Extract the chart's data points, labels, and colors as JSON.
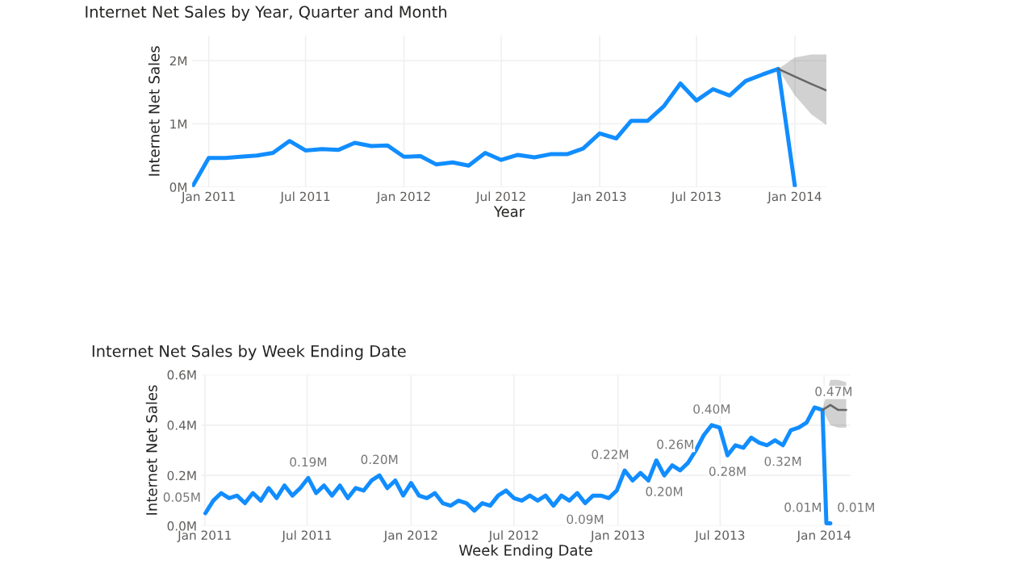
{
  "chart_data": [
    {
      "type": "line",
      "title": "Internet Net Sales by Year, Quarter and Month",
      "xlabel": "Year",
      "ylabel": "Internet Net Sales",
      "xlim": [
        "2010-12",
        "2014-03"
      ],
      "ylim": [
        0,
        2.4
      ],
      "xticks": [
        {
          "value": "2011-01",
          "label": "Jan 2011"
        },
        {
          "value": "2011-07",
          "label": "Jul 2011"
        },
        {
          "value": "2012-01",
          "label": "Jan 2012"
        },
        {
          "value": "2012-07",
          "label": "Jul 2012"
        },
        {
          "value": "2013-01",
          "label": "Jan 2013"
        },
        {
          "value": "2013-07",
          "label": "Jul 2013"
        },
        {
          "value": "2014-01",
          "label": "Jan 2014"
        }
      ],
      "yticks": [
        {
          "value": 0,
          "label": "0M"
        },
        {
          "value": 1,
          "label": "1M"
        },
        {
          "value": 2,
          "label": "2M"
        }
      ],
      "grid": true,
      "legend": false,
      "series": [
        {
          "color": "#118dff",
          "x": [
            "2010-12",
            "2011-01",
            "2011-02",
            "2011-03",
            "2011-04",
            "2011-05",
            "2011-06",
            "2011-07",
            "2011-08",
            "2011-09",
            "2011-10",
            "2011-11",
            "2011-12",
            "2012-01",
            "2012-02",
            "2012-03",
            "2012-04",
            "2012-05",
            "2012-06",
            "2012-07",
            "2012-08",
            "2012-09",
            "2012-10",
            "2012-11",
            "2012-12",
            "2013-01",
            "2013-02",
            "2013-03",
            "2013-04",
            "2013-05",
            "2013-06",
            "2013-07",
            "2013-08",
            "2013-09",
            "2013-10",
            "2013-11",
            "2013-12",
            "2014-01"
          ],
          "values": [
            0,
            0.46,
            0.46,
            0.48,
            0.5,
            0.54,
            0.73,
            0.58,
            0.6,
            0.59,
            0.7,
            0.65,
            0.66,
            0.48,
            0.49,
            0.36,
            0.39,
            0.34,
            0.54,
            0.43,
            0.51,
            0.47,
            0.52,
            0.52,
            0.61,
            0.85,
            0.77,
            1.05,
            1.05,
            1.28,
            1.64,
            1.37,
            1.55,
            1.45,
            1.68,
            1.78,
            1.87,
            0.02
          ]
        },
        {
          "color": "#666666",
          "x": [
            "2013-12",
            "2014-01",
            "2014-02",
            "2014-03"
          ],
          "values": [
            1.87,
            1.75,
            1.63,
            1.53
          ],
          "lower": [
            1.87,
            1.45,
            1.15,
            0.98
          ],
          "upper": [
            1.87,
            2.05,
            2.1,
            2.1
          ]
        }
      ]
    },
    {
      "type": "line",
      "title": "Internet Net Sales by Week Ending Date",
      "xlabel": "Week Ending Date",
      "ylabel": "Internet Net Sales",
      "xlim": [
        "2010-12-26",
        "2014-02-16"
      ],
      "ylim": [
        0,
        0.6
      ],
      "xticks": [
        {
          "value": "2011-01-01",
          "label": "Jan 2011"
        },
        {
          "value": "2011-07-01",
          "label": "Jul 2011"
        },
        {
          "value": "2012-01-01",
          "label": "Jan 2012"
        },
        {
          "value": "2012-07-01",
          "label": "Jul 2012"
        },
        {
          "value": "2013-01-01",
          "label": "Jan 2013"
        },
        {
          "value": "2013-07-01",
          "label": "Jul 2013"
        },
        {
          "value": "2014-01-01",
          "label": "Jan 2014"
        }
      ],
      "yticks": [
        {
          "value": 0,
          "label": "0.0M"
        },
        {
          "value": 0.2,
          "label": "0.2M"
        },
        {
          "value": 0.4,
          "label": "0.4M"
        },
        {
          "value": 0.6,
          "label": "0.6M"
        }
      ],
      "grid": true,
      "legend": false,
      "series": [
        {
          "color": "#118dff",
          "x": [
            "2011-01-02",
            "2011-01-16",
            "2011-01-30",
            "2011-02-13",
            "2011-02-27",
            "2011-03-13",
            "2011-03-27",
            "2011-04-10",
            "2011-04-24",
            "2011-05-08",
            "2011-05-22",
            "2011-06-05",
            "2011-06-19",
            "2011-07-03",
            "2011-07-17",
            "2011-07-31",
            "2011-08-14",
            "2011-08-28",
            "2011-09-11",
            "2011-09-25",
            "2011-10-09",
            "2011-10-23",
            "2011-11-06",
            "2011-11-20",
            "2011-12-04",
            "2011-12-18",
            "2012-01-01",
            "2012-01-15",
            "2012-01-29",
            "2012-02-12",
            "2012-02-26",
            "2012-03-11",
            "2012-03-25",
            "2012-04-08",
            "2012-04-22",
            "2012-05-06",
            "2012-05-20",
            "2012-06-03",
            "2012-06-17",
            "2012-07-01",
            "2012-07-15",
            "2012-07-29",
            "2012-08-12",
            "2012-08-26",
            "2012-09-09",
            "2012-09-23",
            "2012-10-07",
            "2012-10-21",
            "2012-11-04",
            "2012-11-18",
            "2012-12-02",
            "2012-12-16",
            "2012-12-30",
            "2013-01-13",
            "2013-01-27",
            "2013-02-10",
            "2013-02-24",
            "2013-03-10",
            "2013-03-24",
            "2013-04-07",
            "2013-04-21",
            "2013-05-05",
            "2013-05-19",
            "2013-06-02",
            "2013-06-16",
            "2013-06-30",
            "2013-07-14",
            "2013-07-28",
            "2013-08-11",
            "2013-08-25",
            "2013-09-08",
            "2013-09-22",
            "2013-10-06",
            "2013-10-20",
            "2013-11-03",
            "2013-11-17",
            "2013-12-01",
            "2013-12-15",
            "2013-12-29",
            "2014-01-05",
            "2014-01-12"
          ],
          "values": [
            0.05,
            0.1,
            0.13,
            0.11,
            0.12,
            0.09,
            0.13,
            0.1,
            0.15,
            0.11,
            0.16,
            0.12,
            0.15,
            0.19,
            0.13,
            0.16,
            0.12,
            0.16,
            0.11,
            0.15,
            0.14,
            0.18,
            0.2,
            0.15,
            0.18,
            0.12,
            0.17,
            0.12,
            0.11,
            0.13,
            0.09,
            0.08,
            0.1,
            0.09,
            0.06,
            0.09,
            0.08,
            0.12,
            0.14,
            0.11,
            0.1,
            0.12,
            0.1,
            0.12,
            0.08,
            0.12,
            0.1,
            0.13,
            0.09,
            0.12,
            0.12,
            0.11,
            0.14,
            0.22,
            0.18,
            0.21,
            0.18,
            0.26,
            0.2,
            0.24,
            0.22,
            0.25,
            0.3,
            0.36,
            0.4,
            0.39,
            0.28,
            0.32,
            0.31,
            0.35,
            0.33,
            0.32,
            0.34,
            0.32,
            0.38,
            0.39,
            0.41,
            0.47,
            0.46,
            0.01,
            0.01
          ],
          "value_labels": [
            "0.05M",
            null,
            null,
            null,
            null,
            null,
            null,
            null,
            null,
            null,
            null,
            null,
            null,
            "0.19M",
            null,
            null,
            null,
            null,
            null,
            null,
            null,
            null,
            "0.20M",
            null,
            null,
            null,
            null,
            null,
            null,
            null,
            null,
            null,
            null,
            null,
            null,
            null,
            null,
            null,
            null,
            null,
            null,
            null,
            null,
            null,
            null,
            null,
            null,
            null,
            "0.09M",
            null,
            null,
            null,
            null,
            "0.22M",
            null,
            null,
            null,
            "0.26M",
            "0.20M",
            null,
            null,
            null,
            null,
            null,
            "0.40M",
            null,
            "0.28M",
            null,
            null,
            null,
            null,
            null,
            null,
            "0.32M",
            null,
            null,
            null,
            "0.47M",
            null,
            "0.01M",
            "0.01M"
          ]
        },
        {
          "color": "#666666",
          "x": [
            "2013-12-29",
            "2014-01-12",
            "2014-01-26",
            "2014-02-09"
          ],
          "values": [
            0.46,
            0.48,
            0.46,
            0.46
          ],
          "lower": [
            0.46,
            0.4,
            0.39,
            0.39
          ],
          "upper": [
            0.46,
            0.58,
            0.58,
            0.57
          ]
        }
      ]
    }
  ]
}
